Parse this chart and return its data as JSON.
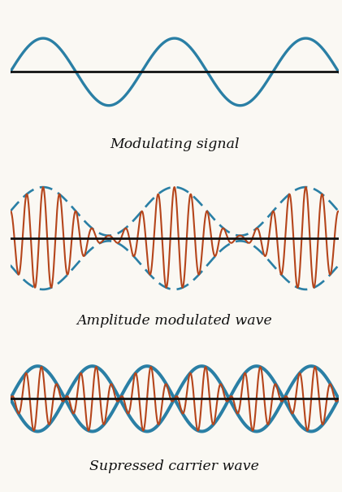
{
  "bg_color": "#faf8f3",
  "teal_color": "#2a7fa5",
  "orange_color": "#b5451b",
  "black_color": "#111111",
  "modulating_label": "Modulating signal",
  "am_label": "Amplitude modulated wave",
  "suppressed_label": "Supressed carrier wave",
  "label_fontsize": 12.5,
  "label_style": "italic",
  "label_family": "DejaVu Serif",
  "n_points": 3000,
  "lw_thin": 1.5,
  "lw_thick": 2.4,
  "lw_envelope": 1.9,
  "lw_axis": 2.0,
  "msg_cycles": 2.5,
  "carrier_ratio": 8,
  "am_msg_cycles": 2.5,
  "am_carrier_ratio": 8,
  "sc_msg_cycles": 3.0,
  "sc_carrier_ratio": 7
}
